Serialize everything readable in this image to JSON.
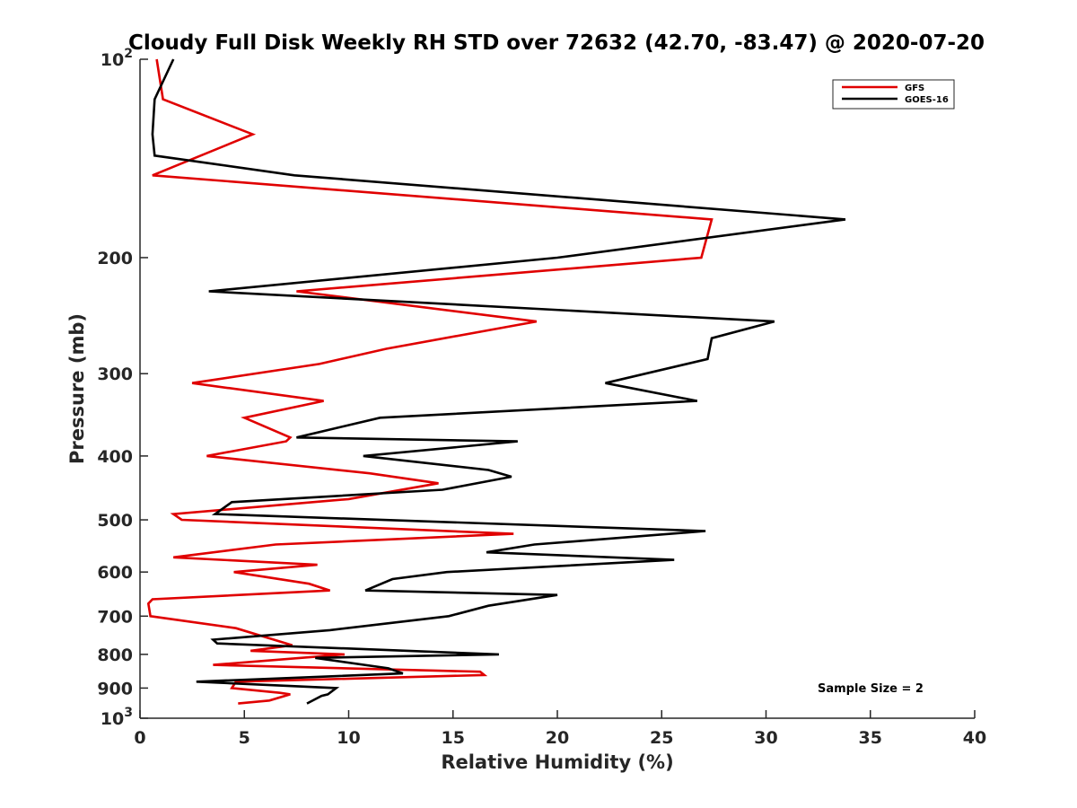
{
  "chart_data": {
    "type": "line",
    "title": "Cloudy Full Disk Weekly RH STD over 72632 (42.70, -83.47) @ 2020-07-20",
    "xlabel": "Relative Humidity (%)",
    "ylabel": "Pressure (mb)",
    "xlim": [
      0,
      40
    ],
    "ylim": [
      100,
      1000
    ],
    "yscale": "log",
    "y_reversed": true,
    "grid": false,
    "legend_position": "top-right",
    "annotation": "Sample Size = 2",
    "x_ticks": [
      {
        "value": 0,
        "label": "0"
      },
      {
        "value": 5,
        "label": "5"
      },
      {
        "value": 10,
        "label": "10"
      },
      {
        "value": 15,
        "label": "15"
      },
      {
        "value": 20,
        "label": "20"
      },
      {
        "value": 25,
        "label": "25"
      },
      {
        "value": 30,
        "label": "30"
      },
      {
        "value": 35,
        "label": "35"
      },
      {
        "value": 40,
        "label": "40"
      }
    ],
    "y_ticks": [
      {
        "value": 100,
        "base": "10",
        "exp": "2"
      },
      {
        "value": 200,
        "label": "200"
      },
      {
        "value": 300,
        "label": "300"
      },
      {
        "value": 400,
        "label": "400"
      },
      {
        "value": 500,
        "label": "500"
      },
      {
        "value": 600,
        "label": "600"
      },
      {
        "value": 700,
        "label": "700"
      },
      {
        "value": 800,
        "label": "800"
      },
      {
        "value": 900,
        "label": "900"
      },
      {
        "value": 1000,
        "base": "10",
        "exp": "3"
      }
    ],
    "series": [
      {
        "name": "GFS",
        "color": "#e00000",
        "points": [
          [
            0.8,
            100
          ],
          [
            1.1,
            115
          ],
          [
            5.4,
            130
          ],
          [
            0.6,
            150
          ],
          [
            27.4,
            175
          ],
          [
            26.9,
            200
          ],
          [
            7.5,
            225
          ],
          [
            19.0,
            250
          ],
          [
            11.8,
            275
          ],
          [
            8.6,
            290
          ],
          [
            2.5,
            310
          ],
          [
            8.8,
            330
          ],
          [
            5.0,
            350
          ],
          [
            7.2,
            375
          ],
          [
            7.0,
            380
          ],
          [
            3.2,
            400
          ],
          [
            11.0,
            425
          ],
          [
            14.3,
            440
          ],
          [
            10.0,
            465
          ],
          [
            1.6,
            490
          ],
          [
            2.0,
            500
          ],
          [
            17.9,
            525
          ],
          [
            6.5,
            545
          ],
          [
            1.6,
            570
          ],
          [
            8.5,
            585
          ],
          [
            4.5,
            600
          ],
          [
            8.1,
            625
          ],
          [
            9.1,
            640
          ],
          [
            0.6,
            660
          ],
          [
            0.4,
            670
          ],
          [
            0.5,
            700
          ],
          [
            4.6,
            730
          ],
          [
            7.3,
            775
          ],
          [
            5.3,
            790
          ],
          [
            9.8,
            800
          ],
          [
            3.5,
            830
          ],
          [
            16.3,
            850
          ],
          [
            16.5,
            860
          ],
          [
            4.6,
            880
          ],
          [
            4.4,
            900
          ],
          [
            6.7,
            915
          ],
          [
            7.2,
            920
          ],
          [
            6.2,
            940
          ],
          [
            4.7,
            950
          ]
        ]
      },
      {
        "name": "GOES-16",
        "color": "#000000",
        "points": [
          [
            1.6,
            100
          ],
          [
            0.7,
            115
          ],
          [
            0.6,
            130
          ],
          [
            0.7,
            140
          ],
          [
            7.4,
            150
          ],
          [
            33.8,
            175
          ],
          [
            20.0,
            200
          ],
          [
            3.3,
            225
          ],
          [
            30.4,
            250
          ],
          [
            27.4,
            265
          ],
          [
            27.2,
            285
          ],
          [
            22.3,
            310
          ],
          [
            26.7,
            330
          ],
          [
            11.5,
            350
          ],
          [
            7.5,
            375
          ],
          [
            18.1,
            380
          ],
          [
            10.7,
            400
          ],
          [
            16.7,
            420
          ],
          [
            17.8,
            430
          ],
          [
            14.5,
            450
          ],
          [
            4.4,
            470
          ],
          [
            3.6,
            490
          ],
          [
            27.1,
            520
          ],
          [
            18.9,
            545
          ],
          [
            16.6,
            560
          ],
          [
            25.6,
            575
          ],
          [
            14.7,
            600
          ],
          [
            12.1,
            615
          ],
          [
            10.8,
            640
          ],
          [
            20.0,
            650
          ],
          [
            16.7,
            675
          ],
          [
            14.8,
            700
          ],
          [
            9.1,
            735
          ],
          [
            3.5,
            760
          ],
          [
            3.7,
            770
          ],
          [
            17.2,
            800
          ],
          [
            8.4,
            810
          ],
          [
            11.9,
            840
          ],
          [
            12.6,
            855
          ],
          [
            2.7,
            880
          ],
          [
            9.4,
            900
          ],
          [
            9.0,
            920
          ],
          [
            8.7,
            925
          ],
          [
            8.0,
            950
          ]
        ]
      }
    ]
  }
}
